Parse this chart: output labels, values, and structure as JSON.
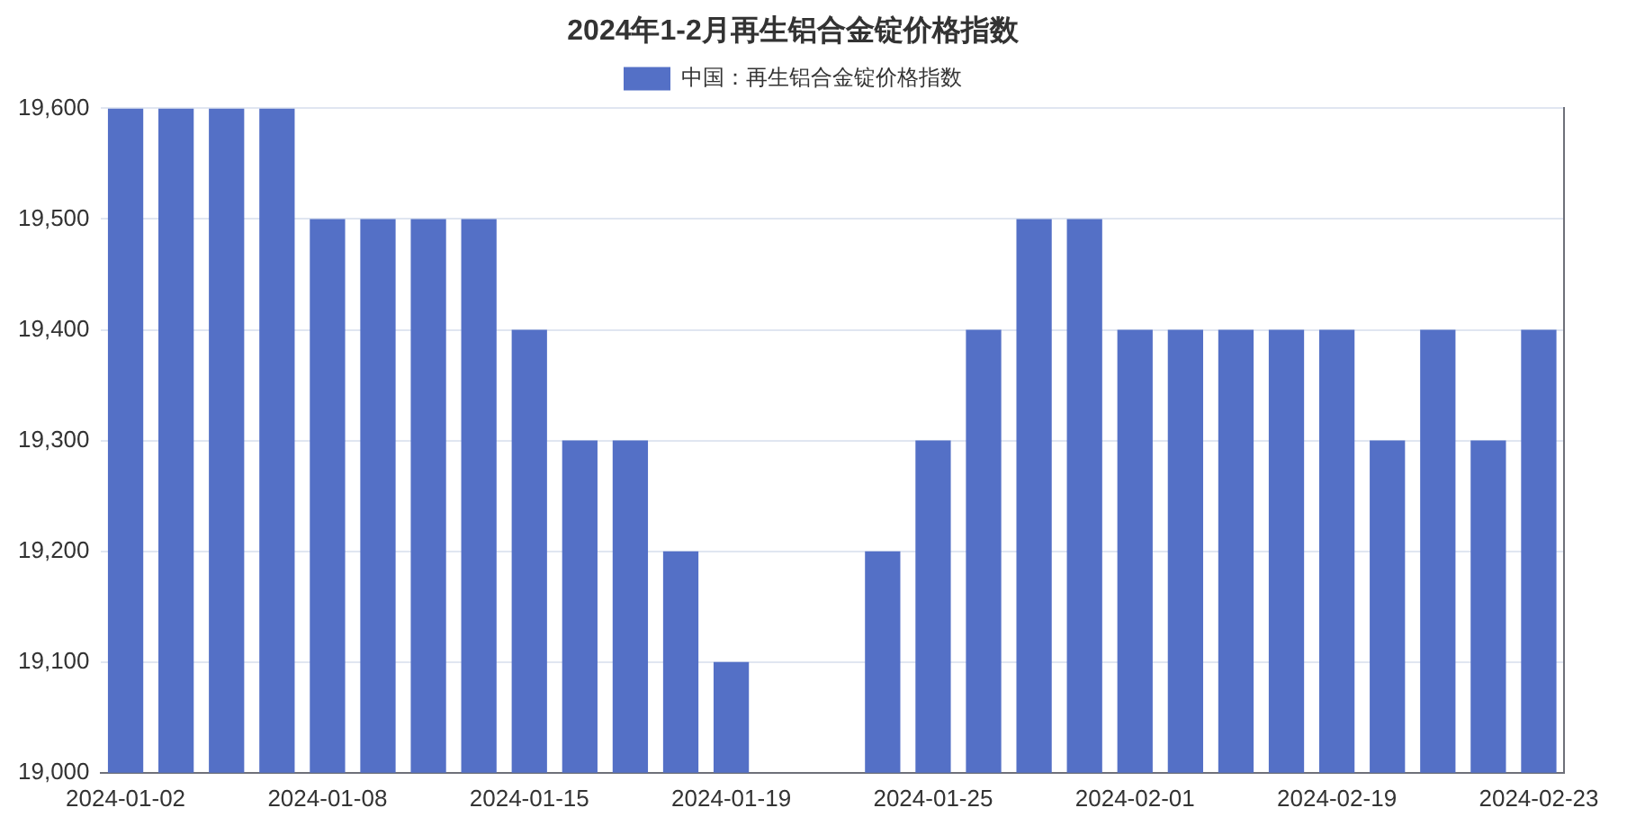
{
  "chart_data": {
    "type": "bar",
    "title": "2024年1-2月再生铝合金锭价格指数",
    "categories": [
      "2024-01-02",
      null,
      null,
      null,
      "2024-01-08",
      null,
      null,
      null,
      "2024-01-15",
      null,
      null,
      null,
      "2024-01-19",
      null,
      null,
      null,
      "2024-01-25",
      null,
      null,
      null,
      "2024-02-01",
      null,
      null,
      null,
      "2024-02-19",
      null,
      null,
      null,
      "2024-02-23"
    ],
    "series": [
      {
        "name": "中国：再生铝合金锭价格指数",
        "color": "#5470c6",
        "values": [
          19600,
          19600,
          19600,
          19600,
          19500,
          19500,
          19500,
          19500,
          19400,
          19300,
          19300,
          19200,
          19100,
          null,
          null,
          19200,
          19300,
          19400,
          19500,
          19500,
          19400,
          19400,
          19400,
          19400,
          19400,
          19300,
          19400,
          19300,
          19400
        ]
      }
    ],
    "ylim": [
      19000,
      19600
    ],
    "yticks": [
      {
        "value": 19000,
        "label": "19,000"
      },
      {
        "value": 19100,
        "label": "19,100"
      },
      {
        "value": 19200,
        "label": "19,200"
      },
      {
        "value": 19300,
        "label": "19,300"
      },
      {
        "value": 19400,
        "label": "19,400"
      },
      {
        "value": 19500,
        "label": "19,500"
      },
      {
        "value": 19600,
        "label": "19,600"
      }
    ],
    "grid": "y",
    "legend": "top"
  }
}
